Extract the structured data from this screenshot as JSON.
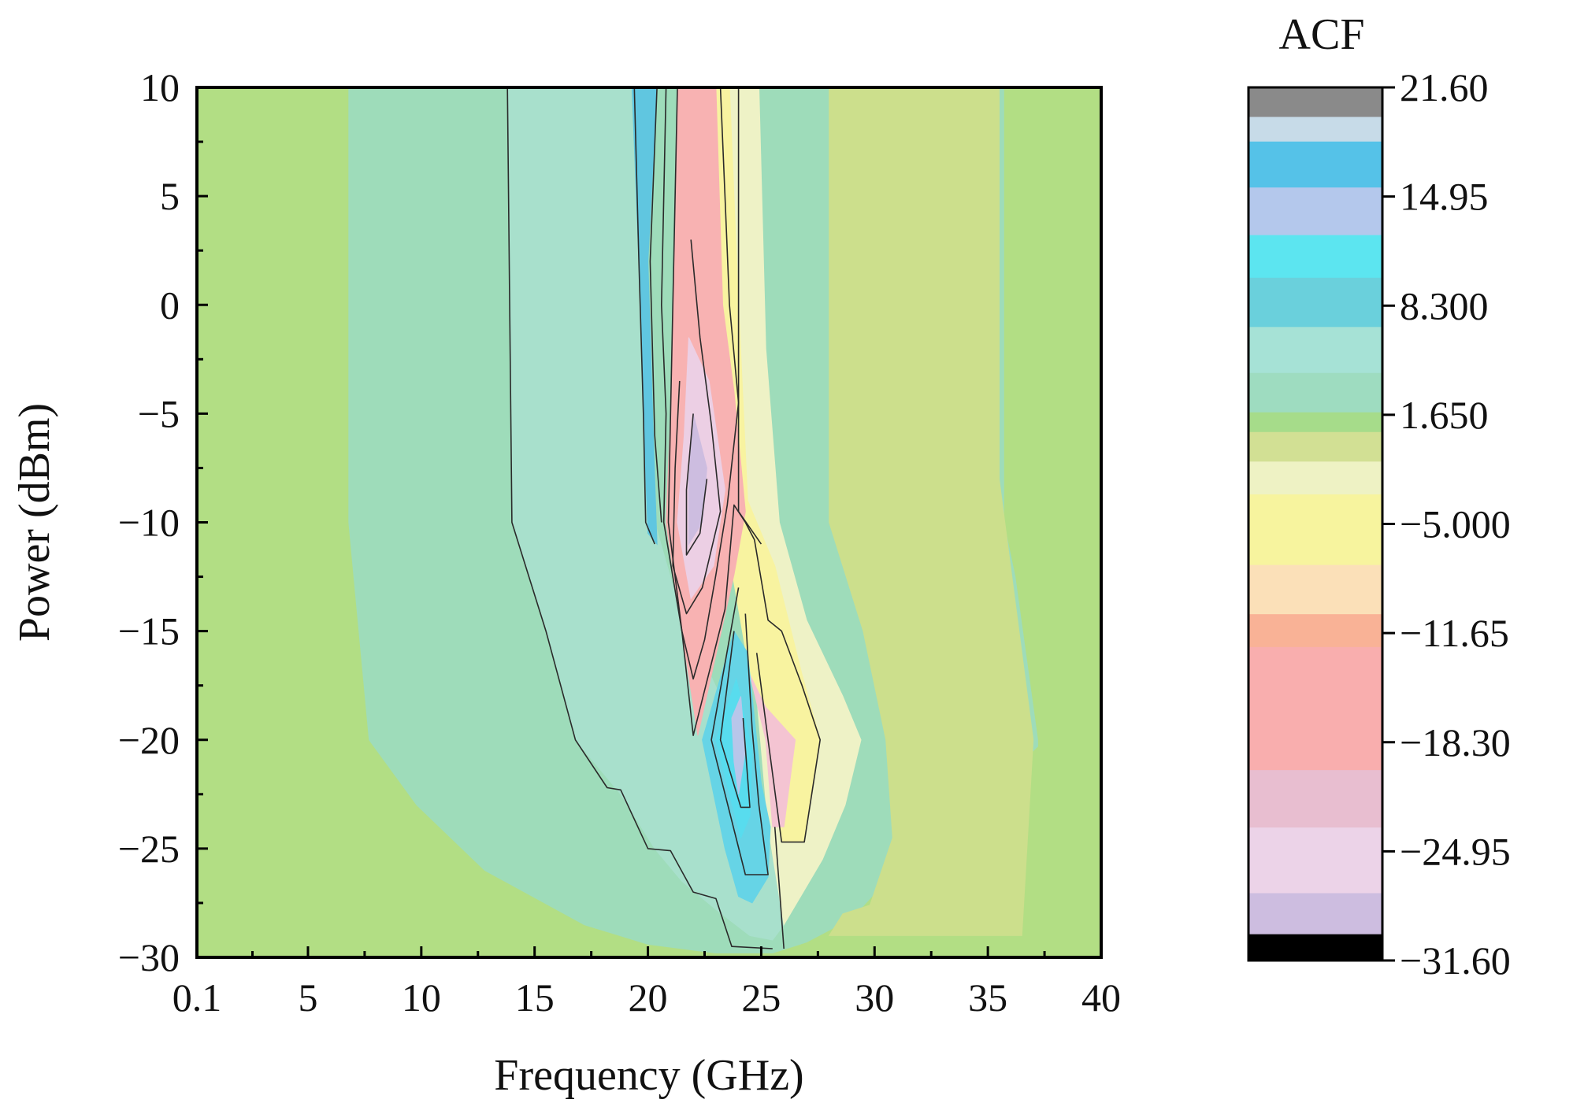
{
  "chart_data": {
    "type": "heatmap",
    "subtype": "filled-contour",
    "title": "",
    "xlabel": "Frequency (GHz)",
    "ylabel": "Power (dBm)",
    "xlim": [
      0.1,
      40
    ],
    "ylim": [
      -30,
      10
    ],
    "x_ticks": [
      0.1,
      5,
      10,
      15,
      20,
      25,
      30,
      35,
      40
    ],
    "x_tick_labels": [
      "0.1",
      "5",
      "10",
      "15",
      "20",
      "25",
      "30",
      "35",
      "40"
    ],
    "y_ticks": [
      10,
      5,
      0,
      -5,
      -10,
      -15,
      -20,
      -25,
      -30
    ],
    "y_tick_labels": [
      "10",
      "5",
      "0",
      "−5",
      "−10",
      "−15",
      "−20",
      "−25",
      "−30"
    ],
    "colorbar": {
      "title": "ACF",
      "range": [
        -31.6,
        21.6
      ],
      "ticks": [
        21.6,
        14.95,
        8.3,
        1.65,
        -5.0,
        -11.65,
        -18.3,
        -24.95,
        -31.6
      ],
      "tick_labels": [
        "21.60",
        "14.95",
        "8.300",
        "1.650",
        "−5.000",
        "−11.65",
        "−18.30",
        "−24.95",
        "−31.60"
      ],
      "bands": [
        {
          "from": 21.6,
          "to": 19.8,
          "color": "#8a8a8a"
        },
        {
          "from": 19.8,
          "to": 18.3,
          "color": "#c7dbe8"
        },
        {
          "from": 18.3,
          "to": 15.5,
          "color": "#55c2e8"
        },
        {
          "from": 15.5,
          "to": 12.6,
          "color": "#b4c8ec"
        },
        {
          "from": 12.6,
          "to": 10.0,
          "color": "#5ce5f0"
        },
        {
          "from": 10.0,
          "to": 7.0,
          "color": "#6ad0dc"
        },
        {
          "from": 7.0,
          "to": 4.2,
          "color": "#a6e2d6"
        },
        {
          "from": 4.2,
          "to": 1.8,
          "color": "#9edcc0"
        },
        {
          "from": 1.8,
          "to": 0.6,
          "color": "#a6dc8a"
        },
        {
          "from": 0.6,
          "to": -1.2,
          "color": "#d2e094"
        },
        {
          "from": -1.2,
          "to": -3.2,
          "color": "#eef2c4"
        },
        {
          "from": -3.2,
          "to": -7.5,
          "color": "#f7f49e"
        },
        {
          "from": -7.5,
          "to": -10.5,
          "color": "#fbe0b8"
        },
        {
          "from": -10.5,
          "to": -12.5,
          "color": "#f9b296"
        },
        {
          "from": -12.5,
          "to": -20.0,
          "color": "#f9aeae"
        },
        {
          "from": -20.0,
          "to": -23.5,
          "color": "#e8bed0"
        },
        {
          "from": -23.5,
          "to": -27.5,
          "color": "#ecd3e8"
        },
        {
          "from": -27.5,
          "to": -30.0,
          "color": "#cdbde0"
        },
        {
          "from": -30.0,
          "to": -31.6,
          "color": "#000000"
        }
      ]
    },
    "regions": [
      {
        "level": "background",
        "color": "#b2de84",
        "points": [
          [
            0.1,
            -30
          ],
          [
            40,
            -30
          ],
          [
            40,
            10
          ],
          [
            0.1,
            10
          ]
        ]
      },
      {
        "level": 2.5,
        "color": "#9edcba",
        "points": [
          [
            6.8,
            10
          ],
          [
            6.8,
            -10
          ],
          [
            7.7,
            -20
          ],
          [
            9.8,
            -23
          ],
          [
            12.8,
            -26
          ],
          [
            17.2,
            -28.5
          ],
          [
            20.0,
            -29.4
          ],
          [
            23.0,
            -29.8
          ],
          [
            25.5,
            -29.8
          ],
          [
            27.0,
            -29.3
          ],
          [
            29.0,
            -28.2
          ],
          [
            30.5,
            -26.5
          ],
          [
            32.0,
            -25.5
          ],
          [
            35.0,
            -22.5
          ],
          [
            37.2,
            -20.3
          ],
          [
            37.2,
            -20.0
          ],
          [
            36.2,
            -12.5
          ],
          [
            35.7,
            -10.0
          ],
          [
            35.7,
            10
          ]
        ]
      },
      {
        "level": 1.0,
        "color": "#ccdf8c",
        "points": [
          [
            28.0,
            10
          ],
          [
            28.0,
            -10
          ],
          [
            29.5,
            -15
          ],
          [
            30.5,
            -20
          ],
          [
            30.8,
            -24.5
          ],
          [
            29.8,
            -27.6
          ],
          [
            28.6,
            -28.0
          ],
          [
            28.0,
            -29.0
          ],
          [
            36.5,
            -29.0
          ],
          [
            37.0,
            -20.0
          ],
          [
            36.0,
            -12.0
          ],
          [
            35.5,
            -8.0
          ],
          [
            35.5,
            10
          ]
        ]
      },
      {
        "level": 3.5,
        "color": "#a8e0cc",
        "points": [
          [
            13.8,
            10
          ],
          [
            14.0,
            -10
          ],
          [
            15.5,
            -15
          ],
          [
            16.8,
            -20
          ],
          [
            18.8,
            -22.5
          ],
          [
            20.3,
            -25
          ],
          [
            21.5,
            -26.5
          ],
          [
            23.0,
            -27.8
          ],
          [
            24.5,
            -29.0
          ],
          [
            25.5,
            -29.2
          ],
          [
            26.0,
            -28.5
          ],
          [
            25.6,
            -26.0
          ],
          [
            24.8,
            -22.0
          ],
          [
            23.2,
            -18.0
          ],
          [
            21.4,
            -14.0
          ],
          [
            20.3,
            -10.0
          ],
          [
            19.8,
            -5.0
          ],
          [
            19.3,
            10
          ]
        ]
      },
      {
        "level": -2.0,
        "color": "#eef2c6",
        "points": [
          [
            24.9,
            10
          ],
          [
            25.2,
            -2
          ],
          [
            25.8,
            -10
          ],
          [
            27.0,
            -14.5
          ],
          [
            28.6,
            -18.0
          ],
          [
            29.4,
            -20.0
          ],
          [
            28.7,
            -23.0
          ],
          [
            27.7,
            -25.5
          ],
          [
            26.0,
            -28.5
          ],
          [
            25.3,
            -24.0
          ],
          [
            24.8,
            -18.0
          ],
          [
            24.1,
            -12.0
          ],
          [
            23.4,
            -3.0
          ],
          [
            23.0,
            10
          ]
        ]
      },
      {
        "level": -6.0,
        "color": "#f8f3a0",
        "points": [
          [
            23.6,
            10
          ],
          [
            24.0,
            0
          ],
          [
            24.4,
            -9.0
          ],
          [
            25.6,
            -12.0
          ],
          [
            26.8,
            -17.0
          ],
          [
            27.6,
            -20.0
          ],
          [
            26.9,
            -24.7
          ],
          [
            25.9,
            -24.7
          ],
          [
            25.3,
            -20.0
          ],
          [
            24.5,
            -17.0
          ],
          [
            23.5,
            -11.0
          ],
          [
            23.0,
            -5.0
          ],
          [
            22.6,
            10
          ]
        ]
      },
      {
        "level": -15.0,
        "color": "#f8b2b2",
        "points": [
          [
            21.3,
            10
          ],
          [
            21.1,
            0
          ],
          [
            21.0,
            -5.0
          ],
          [
            20.8,
            -10.0
          ],
          [
            21.5,
            -15.0
          ],
          [
            22.2,
            -19.8
          ],
          [
            23.8,
            -12.4
          ],
          [
            24.3,
            -9.5
          ],
          [
            23.8,
            -4.0
          ],
          [
            23.3,
            0
          ],
          [
            23.0,
            10
          ]
        ]
      },
      {
        "level": -20.0,
        "color": "#f4c4d2",
        "points": [
          [
            24.5,
            -17.0
          ],
          [
            25.2,
            -18.5
          ],
          [
            26.5,
            -20.0
          ],
          [
            26.0,
            -24.0
          ],
          [
            25.5,
            -24.0
          ],
          [
            25.2,
            -20.0
          ]
        ]
      },
      {
        "level": -24.0,
        "color": "#eccfe4",
        "points": [
          [
            21.8,
            -1.5
          ],
          [
            21.6,
            -6.0
          ],
          [
            21.3,
            -10.0
          ],
          [
            21.9,
            -13.5
          ],
          [
            22.9,
            -12.0
          ],
          [
            23.4,
            -8.5
          ],
          [
            22.7,
            -3.5
          ]
        ]
      },
      {
        "level": -29.0,
        "color": "#cdbde0",
        "points": [
          [
            22.0,
            -5.0
          ],
          [
            21.8,
            -8.0
          ],
          [
            21.8,
            -11.0
          ],
          [
            22.4,
            -10.0
          ],
          [
            22.6,
            -7.5
          ]
        ]
      },
      {
        "level": 12.0,
        "color": "#60c6e0",
        "points": [
          [
            19.3,
            10
          ],
          [
            20.4,
            10
          ],
          [
            20.0,
            2.0
          ],
          [
            20.3,
            -8.0
          ],
          [
            20.4,
            -11.0
          ],
          [
            20.0,
            -10.5
          ],
          [
            19.8,
            -5.0
          ],
          [
            19.6,
            2.0
          ]
        ]
      },
      {
        "level": 11.0,
        "color": "#66d4e6",
        "points": [
          [
            22.4,
            -20.0
          ],
          [
            23.8,
            -15.0
          ],
          [
            24.4,
            -16.0
          ],
          [
            25.0,
            -22.0
          ],
          [
            25.4,
            -24.0
          ],
          [
            25.3,
            -26.3
          ],
          [
            24.6,
            -27.5
          ],
          [
            24.0,
            -27.2
          ],
          [
            23.4,
            -25.0
          ]
        ]
      },
      {
        "level": 14.0,
        "color": "#58dcee",
        "points": [
          [
            23.0,
            -20.0
          ],
          [
            23.9,
            -17.2
          ],
          [
            24.6,
            -20.5
          ],
          [
            24.5,
            -23.5
          ],
          [
            24.1,
            -24.5
          ],
          [
            23.6,
            -22.5
          ]
        ]
      },
      {
        "level": 17.0,
        "color": "#b8c6ea",
        "points": [
          [
            23.7,
            -19.0
          ],
          [
            24.1,
            -18.0
          ],
          [
            24.3,
            -20.5
          ],
          [
            24.0,
            -22.5
          ],
          [
            23.8,
            -21.0
          ]
        ]
      }
    ],
    "contour_lines": [
      [
        [
          13.8,
          10
        ],
        [
          14.0,
          -10
        ],
        [
          15.5,
          -15
        ],
        [
          16.8,
          -20
        ],
        [
          18.2,
          -22.2
        ],
        [
          18.8,
          -22.3
        ],
        [
          20.0,
          -25.0
        ],
        [
          21.0,
          -25.1
        ],
        [
          22.0,
          -27.0
        ],
        [
          23.0,
          -27.3
        ],
        [
          23.7,
          -29.5
        ],
        [
          25.5,
          -29.6
        ]
      ],
      [
        [
          19.4,
          10
        ],
        [
          19.6,
          2.0
        ],
        [
          19.8,
          -5.0
        ],
        [
          19.9,
          -10.0
        ],
        [
          20.3,
          -11.0
        ]
      ],
      [
        [
          20.4,
          10
        ],
        [
          20.1,
          2.0
        ],
        [
          20.3,
          -6.0
        ],
        [
          20.6,
          -10.0
        ]
      ],
      [
        [
          20.8,
          10
        ],
        [
          20.6,
          0
        ],
        [
          20.8,
          -5.0
        ],
        [
          20.7,
          -10.0
        ],
        [
          21.5,
          -15.0
        ],
        [
          22.0,
          -19.8
        ],
        [
          23.4,
          -14.0
        ],
        [
          23.8,
          -9.2
        ],
        [
          24.3,
          -10.0
        ],
        [
          24.7,
          -10.8
        ],
        [
          25.3,
          -14.5
        ],
        [
          25.9,
          -15.0
        ],
        [
          26.8,
          -17.5
        ],
        [
          27.6,
          -20.0
        ],
        [
          26.9,
          -24.7
        ],
        [
          25.9,
          -24.7
        ],
        [
          25.3,
          -20.0
        ],
        [
          24.8,
          -16.0
        ]
      ],
      [
        [
          21.3,
          10
        ],
        [
          21.1,
          0
        ],
        [
          21.0,
          -5.0
        ],
        [
          20.9,
          -10.0
        ],
        [
          21.5,
          -15.0
        ],
        [
          22.0,
          -17.2
        ],
        [
          22.5,
          -15.4
        ],
        [
          23.0,
          -12.4
        ],
        [
          23.5,
          -9.2
        ],
        [
          24.0,
          -4.5
        ],
        [
          23.6,
          0
        ],
        [
          23.4,
          5
        ],
        [
          23.2,
          10
        ]
      ],
      [
        [
          21.4,
          -3.5
        ],
        [
          21.2,
          -7.5
        ],
        [
          21.1,
          -12.0
        ],
        [
          21.7,
          -14.2
        ],
        [
          22.4,
          -13.0
        ],
        [
          23.2,
          -9.5
        ],
        [
          22.8,
          -5.5
        ],
        [
          22.3,
          -1.5
        ],
        [
          21.9,
          3.0
        ]
      ],
      [
        [
          22.0,
          -5.0
        ],
        [
          21.7,
          -8.5
        ],
        [
          21.7,
          -11.5
        ],
        [
          22.3,
          -10.5
        ],
        [
          22.6,
          -8.0
        ]
      ],
      [
        [
          24.0,
          -13.0
        ],
        [
          22.8,
          -20.0
        ],
        [
          24.3,
          -26.2
        ],
        [
          25.3,
          -26.2
        ],
        [
          24.9,
          -23.0
        ],
        [
          24.6,
          -19.5
        ],
        [
          24.3,
          -14.2
        ]
      ],
      [
        [
          23.8,
          -15.0
        ],
        [
          23.2,
          -20.0
        ],
        [
          24.1,
          -23.1
        ],
        [
          24.5,
          -23.1
        ],
        [
          24.2,
          -19.0
        ]
      ],
      [
        [
          24.0,
          10
        ],
        [
          24.0,
          -9.5
        ],
        [
          25.0,
          -11.0
        ]
      ],
      [
        [
          25.6,
          -24.0
        ],
        [
          26.0,
          -29.6
        ]
      ]
    ]
  }
}
